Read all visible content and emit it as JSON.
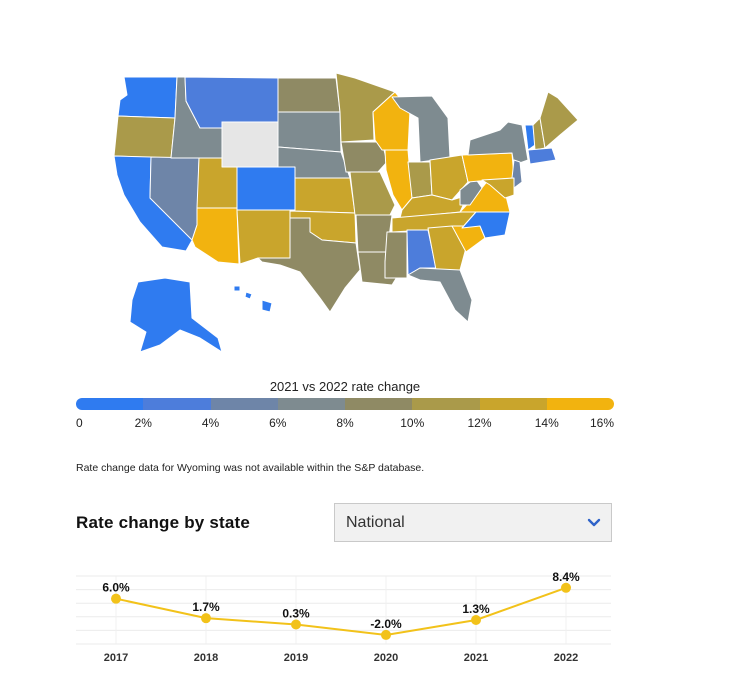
{
  "map": {
    "colors": {
      "c0": "#2f7bf0",
      "c2": "#4d7ddb",
      "c4": "#6e85a8",
      "c6": "#7e8b90",
      "c8": "#8f8a64",
      "c10": "#aa9a4a",
      "c12": "#c9a52c",
      "c14": "#f2b30f",
      "na": "#e6e6e6",
      "border": "#ffffff"
    }
  },
  "legend": {
    "title": "2021 vs 2022 rate change",
    "gradient": [
      "#2f7bf0",
      "#4d7ddb",
      "#6e85a8",
      "#7e8b90",
      "#8f8a64",
      "#aa9a4a",
      "#c9a52c",
      "#f2b30f"
    ],
    "ticks": [
      "0",
      "2%",
      "4%",
      "6%",
      "8%",
      "10%",
      "12%",
      "14%",
      "16%"
    ]
  },
  "note": "Rate change data for Wyoming was not available within the S&P database.",
  "section": {
    "title": "Rate change by state"
  },
  "dropdown": {
    "selected": "National"
  },
  "chart_data": {
    "type": "line",
    "title": "",
    "x": [
      "2017",
      "2018",
      "2019",
      "2020",
      "2021",
      "2022"
    ],
    "series": [
      {
        "values": [
          6.0,
          1.7,
          0.3,
          -2.0,
          1.3,
          8.4
        ]
      }
    ],
    "data_labels": [
      "6.0%",
      "1.7%",
      "0.3%",
      "-2.0%",
      "1.3%",
      "8.4%"
    ],
    "ylim": [
      -4,
      11
    ],
    "grid": true,
    "line_color": "#f2c21a",
    "marker_color": "#f2c21a"
  }
}
